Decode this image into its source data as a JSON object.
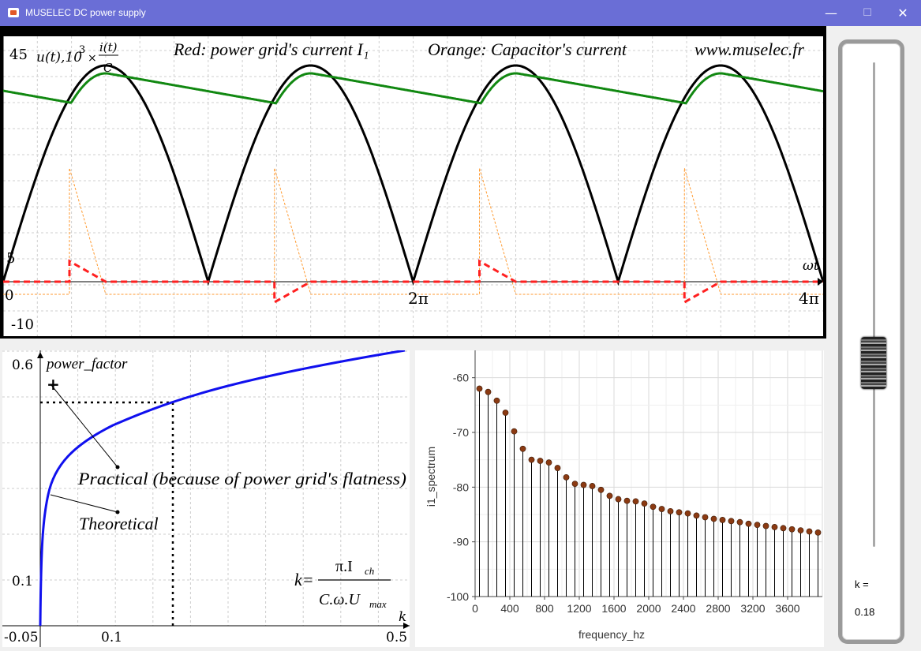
{
  "window": {
    "title": "MUSELEC DC power supply",
    "minimize": "—",
    "maximize": "☐",
    "close": "✕"
  },
  "top_graph": {
    "y_top": "45",
    "y_mid": "5",
    "y_bottom": "-10",
    "x_labels": [
      "0",
      "2π",
      "4π"
    ],
    "x_axis": "ωt",
    "left_label_a": "u(t),10",
    "left_label_exp": "3",
    "left_label_times": "×",
    "left_label_num": "i(t)",
    "left_label_den": "C",
    "caption_red": "Red: power grid's current I₁",
    "caption_orange": "Orange: Capacitor's current",
    "caption_site": "www.muselec.fr",
    "colors": {
      "voltage": "#000000",
      "output": "#118811",
      "grid_current": "#ff2020",
      "cap_current": "#ff9a30"
    }
  },
  "power_factor_graph": {
    "y_label": "power_factor",
    "y_tick_top": "0.6",
    "y_tick_bottom": "0.1",
    "x_tick_left": "-0.05",
    "x_tick_mid": "0.1",
    "x_tick_right": "0.5",
    "x_axis_label": "k",
    "practical_label": "Practical (because of power grid's flatness)",
    "theoretical_label": "Theoretical",
    "formula_lhs": "k=",
    "formula_num": "π.I",
    "formula_num_sub": "ch",
    "formula_den": "C.ω.U",
    "formula_den_sub": "max",
    "curve_color": "#1010ee"
  },
  "spectrum_graph": {
    "y_axis_label": "i1_spectrum",
    "x_axis_label": "frequency_hz",
    "y_ticks": [
      "-60",
      "-70",
      "-80",
      "-90",
      "-100"
    ],
    "x_ticks": [
      "0",
      "400",
      "800",
      "1200",
      "1600",
      "2000",
      "2400",
      "2800",
      "3200",
      "3600"
    ],
    "marker_color": "#8b3a12"
  },
  "chart_data": {
    "type": "scatter",
    "title": "",
    "xlabel": "frequency_hz",
    "ylabel": "i1_spectrum",
    "xlim": [
      0,
      4000
    ],
    "ylim": [
      -100,
      -55
    ],
    "x": [
      50,
      150,
      250,
      350,
      450,
      550,
      650,
      750,
      850,
      950,
      1050,
      1150,
      1250,
      1350,
      1450,
      1550,
      1650,
      1750,
      1850,
      1950,
      2050,
      2150,
      2250,
      2350,
      2450,
      2550,
      2650,
      2750,
      2850,
      2950,
      3050,
      3150,
      3250,
      3350,
      3450,
      3550,
      3650,
      3750,
      3850,
      3950
    ],
    "values": [
      -62,
      -62.6,
      -64.2,
      -66.4,
      -69.8,
      -73,
      -75,
      -75.2,
      -75.5,
      -76.5,
      -78.2,
      -79.4,
      -79.6,
      -79.8,
      -80.5,
      -81.6,
      -82.2,
      -82.5,
      -82.6,
      -83,
      -83.6,
      -84,
      -84.4,
      -84.6,
      -84.8,
      -85.2,
      -85.5,
      -85.8,
      -86,
      -86.2,
      -86.4,
      -86.7,
      -86.9,
      -87.1,
      -87.3,
      -87.5,
      -87.7,
      -87.9,
      -88.1,
      -88.3
    ],
    "grid": true
  },
  "slider": {
    "label": "k =",
    "value": "0.18",
    "fraction": 0.62
  }
}
